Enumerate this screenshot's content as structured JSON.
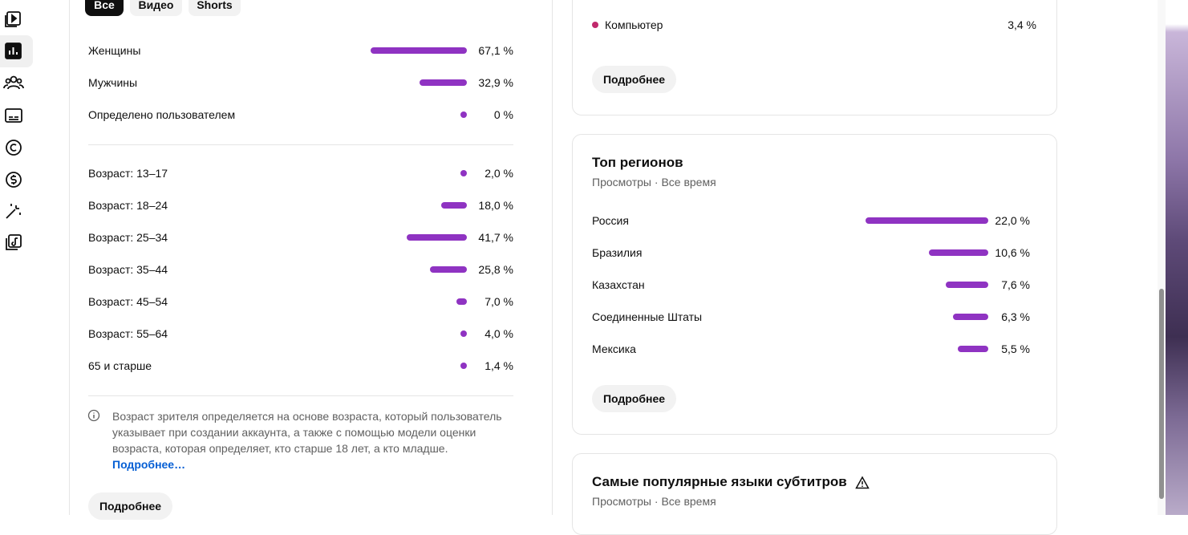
{
  "tabs": [
    "Все",
    "Видео",
    "Shorts"
  ],
  "gender": [
    {
      "label": "Женщины",
      "value": 67.1,
      "value_label": "67,1 %"
    },
    {
      "label": "Мужчины",
      "value": 32.9,
      "value_label": "32,9 %"
    },
    {
      "label": "Определено пользователем",
      "value": 0,
      "value_label": "0 %"
    }
  ],
  "age": [
    {
      "label": "Возраст: 13–17",
      "value": 2.0,
      "value_label": "2,0 %"
    },
    {
      "label": "Возраст: 18–24",
      "value": 18.0,
      "value_label": "18,0 %"
    },
    {
      "label": "Возраст: 25–34",
      "value": 41.7,
      "value_label": "41,7 %"
    },
    {
      "label": "Возраст: 35–44",
      "value": 25.8,
      "value_label": "25,8 %"
    },
    {
      "label": "Возраст: 45–54",
      "value": 7.0,
      "value_label": "7,0 %"
    },
    {
      "label": "Возраст: 55–64",
      "value": 4.0,
      "value_label": "4,0 %"
    },
    {
      "label": "65 и старше",
      "value": 1.4,
      "value_label": "1,4 %"
    }
  ],
  "note": {
    "text": "Возраст зрителя определяется на основе возраста, который пользователь указывает при создании аккаунта, а также с помощью модели оценки возраста, которая определяет, кто старше 18 лет, а кто младше.",
    "link": "Подробнее…"
  },
  "left_more": "Подробнее",
  "devices": {
    "items": [
      {
        "label": "Компьютер",
        "value": 3.4,
        "value_label": "3,4 %"
      }
    ],
    "more": "Подробнее"
  },
  "regions": {
    "title": "Топ регионов",
    "subtitle": "Просмотры · Все время",
    "items": [
      {
        "label": "Россия",
        "value": 22.0,
        "value_label": "22,0 %"
      },
      {
        "label": "Бразилия",
        "value": 10.6,
        "value_label": "10,6 %"
      },
      {
        "label": "Казахстан",
        "value": 7.6,
        "value_label": "7,6 %"
      },
      {
        "label": "Соединенные Штаты",
        "value": 6.3,
        "value_label": "6,3 %"
      },
      {
        "label": "Мексика",
        "value": 5.5,
        "value_label": "5,5 %"
      }
    ],
    "more": "Подробнее"
  },
  "subtitles": {
    "title": "Самые популярные языки субтитров",
    "subtitle": "Просмотры · Все время"
  }
}
